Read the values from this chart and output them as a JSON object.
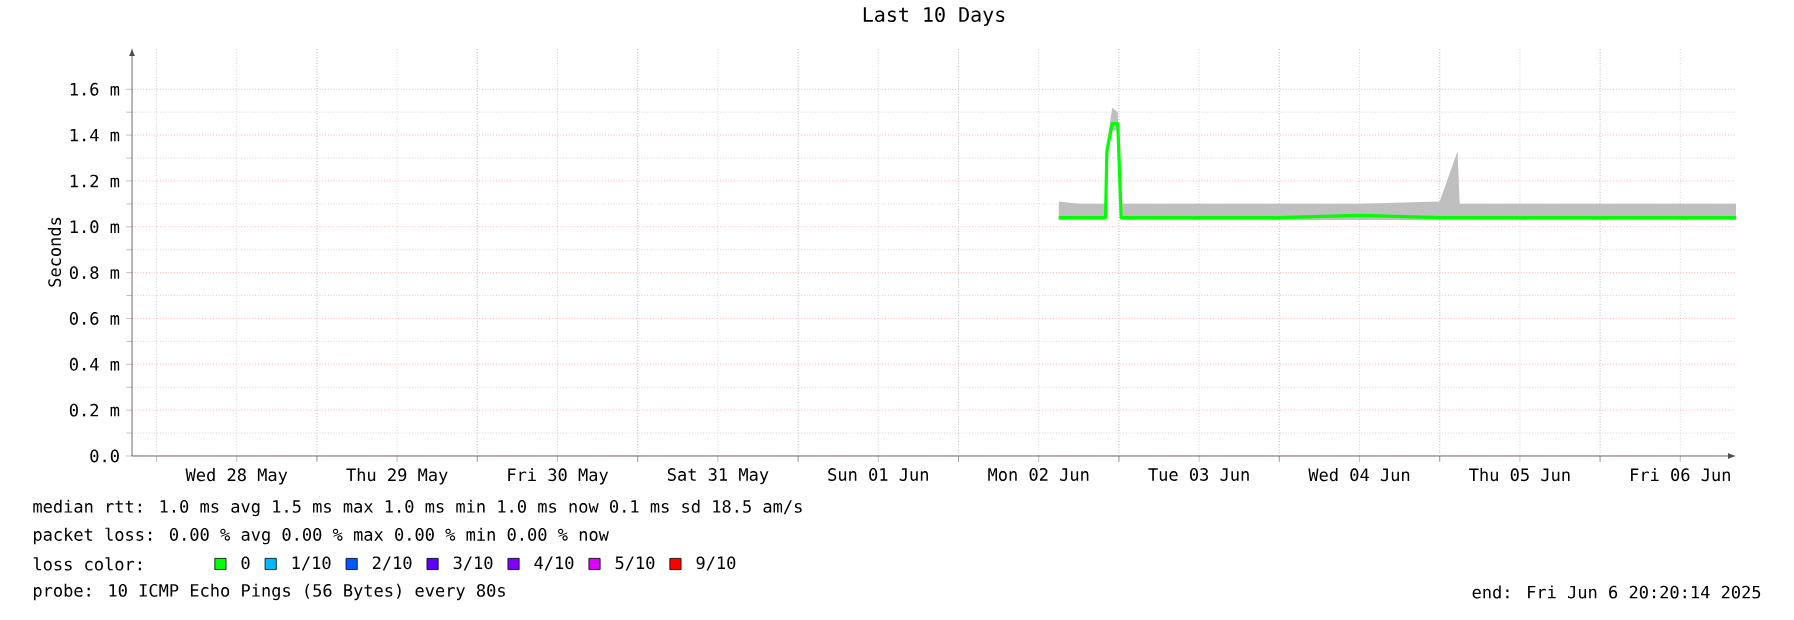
{
  "chart_data": {
    "type": "line",
    "title": "Last 10 Days",
    "ylabel": "Seconds",
    "xlim": [
      "2025-05-27T20:20",
      "2025-06-06T20:20"
    ],
    "xticks": [
      {
        "value": "2025-05-28T00:00",
        "label": null
      },
      {
        "value": "2025-05-28T12:00",
        "label": "Wed 28 May"
      },
      {
        "value": "2025-05-29T00:00",
        "label": null
      },
      {
        "value": "2025-05-29T12:00",
        "label": "Thu 29 May"
      },
      {
        "value": "2025-05-30T00:00",
        "label": null
      },
      {
        "value": "2025-05-30T12:00",
        "label": "Fri 30 May"
      },
      {
        "value": "2025-05-31T00:00",
        "label": null
      },
      {
        "value": "2025-05-31T12:00",
        "label": "Sat 31 May"
      },
      {
        "value": "2025-06-01T00:00",
        "label": null
      },
      {
        "value": "2025-06-01T12:00",
        "label": "Sun 01 Jun"
      },
      {
        "value": "2025-06-02T00:00",
        "label": null
      },
      {
        "value": "2025-06-02T12:00",
        "label": "Mon 02 Jun"
      },
      {
        "value": "2025-06-03T00:00",
        "label": null
      },
      {
        "value": "2025-06-03T12:00",
        "label": "Tue 03 Jun"
      },
      {
        "value": "2025-06-04T00:00",
        "label": null
      },
      {
        "value": "2025-06-04T12:00",
        "label": "Wed 04 Jun"
      },
      {
        "value": "2025-06-05T00:00",
        "label": null
      },
      {
        "value": "2025-06-05T12:00",
        "label": "Thu 05 Jun"
      },
      {
        "value": "2025-06-06T00:00",
        "label": null
      },
      {
        "value": "2025-06-06T12:00",
        "label": "Fri 06 Jun"
      }
    ],
    "ylim": [
      0,
      1.78
    ],
    "yticks": [
      {
        "value": 0,
        "label": "0.0"
      },
      {
        "value": 0.2,
        "label": "0.2 m"
      },
      {
        "value": 0.4,
        "label": "0.4 m"
      },
      {
        "value": 0.6,
        "label": "0.6 m"
      },
      {
        "value": 0.8,
        "label": "0.8 m"
      },
      {
        "value": 1.0,
        "label": "1.0 m"
      },
      {
        "value": 1.2,
        "label": "1.2 m"
      },
      {
        "value": 1.4,
        "label": "1.4 m"
      },
      {
        "value": 1.6,
        "label": "1.6 m"
      }
    ],
    "grid": true,
    "legend": "bottom",
    "legend_title": "loss color:",
    "x": [
      "2025-06-02T15:00",
      "2025-06-02T18:00",
      "2025-06-02T22:00",
      "2025-06-02T22:12",
      "2025-06-02T23:00",
      "2025-06-02T23:50",
      "2025-06-03T00:20",
      "2025-06-03T12:00",
      "2025-06-04T00:00",
      "2025-06-04T12:00",
      "2025-06-05T00:00",
      "2025-06-05T02:40",
      "2025-06-05T03:00",
      "2025-06-05T12:00",
      "2025-06-06T00:00",
      "2025-06-06T12:00",
      "2025-06-06T20:20"
    ],
    "series": [
      {
        "name": "0",
        "color": "#00ff00",
        "values": [
          1.04,
          1.04,
          1.04,
          1.33,
          1.45,
          1.45,
          1.04,
          1.04,
          1.04,
          1.05,
          1.04,
          1.04,
          1.04,
          1.04,
          1.04,
          1.04,
          1.04
        ],
        "lower": [
          1.03,
          1.03,
          1.03,
          1.3,
          1.42,
          1.42,
          1.03,
          1.03,
          1.03,
          1.03,
          1.03,
          1.03,
          1.03,
          1.03,
          1.03,
          1.03,
          1.03
        ],
        "upper": [
          1.11,
          1.1,
          1.1,
          1.36,
          1.52,
          1.5,
          1.1,
          1.1,
          1.1,
          1.1,
          1.11,
          1.33,
          1.1,
          1.1,
          1.1,
          1.1,
          1.1
        ]
      },
      {
        "name": "1/10",
        "color": "#00b8ff",
        "values": [
          null,
          null,
          null,
          null,
          null,
          null,
          null,
          null,
          null,
          null,
          null,
          null,
          null,
          null,
          null,
          null,
          null
        ]
      },
      {
        "name": "2/10",
        "color": "#0059ff",
        "values": [
          null,
          null,
          null,
          null,
          null,
          null,
          null,
          null,
          null,
          null,
          null,
          null,
          null,
          null,
          null,
          null,
          null
        ]
      },
      {
        "name": "3/10",
        "color": "#5e00ff",
        "values": [
          null,
          null,
          null,
          null,
          null,
          null,
          null,
          null,
          null,
          null,
          null,
          null,
          null,
          null,
          null,
          null,
          null
        ]
      },
      {
        "name": "4/10",
        "color": "#7e00ff",
        "values": [
          null,
          null,
          null,
          null,
          null,
          null,
          null,
          null,
          null,
          null,
          null,
          null,
          null,
          null,
          null,
          null,
          null
        ]
      },
      {
        "name": "5/10",
        "color": "#dd00ff",
        "values": [
          null,
          null,
          null,
          null,
          null,
          null,
          null,
          null,
          null,
          null,
          null,
          null,
          null,
          null,
          null,
          null,
          null
        ]
      },
      {
        "name": "9/10",
        "color": "#ff0000",
        "values": [
          null,
          null,
          null,
          null,
          null,
          null,
          null,
          null,
          null,
          null,
          null,
          null,
          null,
          null,
          null,
          null,
          null
        ]
      }
    ],
    "annotations": [
      "median rtt: 1.0 ms avg 1.5 ms max 1.0 ms min 1.0 ms now 0.1 ms sd 18.5 am/s",
      "packet loss: 0.00 % avg 0.00 % max 0.00 % min 0.00 % now",
      "probe: 10 ICMP Echo Pings (56 Bytes) every 80s",
      "end: Fri Jun 6 20:20:14 2025"
    ]
  }
}
